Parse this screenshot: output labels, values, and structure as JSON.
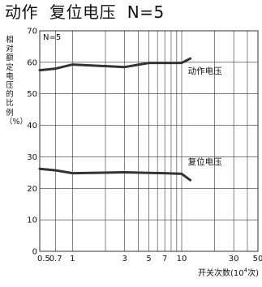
{
  "title": {
    "main": "动作",
    "sub": "复位电压",
    "n": "N=5"
  },
  "y_axis_label": "相对额定电压的比例（%）",
  "x_axis_label": {
    "before": "开关次数(10",
    "exponent": "4",
    "after": "次)"
  },
  "inset_label": "N=5",
  "chart_data": {
    "type": "line",
    "title": "动作 复位电压 N=5",
    "xlabel": "开关次数(10⁴次)",
    "ylabel": "相对额定电压的比例（%）",
    "x_scale": "log",
    "xlim": [
      0.5,
      50
    ],
    "ylim": [
      0,
      70
    ],
    "x_ticks": [
      0.5,
      0.7,
      1,
      3,
      5,
      7,
      10,
      30,
      50
    ],
    "x_tick_labels": [
      "0.5",
      "0.7",
      "1",
      "3",
      "5",
      "7",
      "10",
      "30",
      "50"
    ],
    "x_minor_gridlines": [
      2,
      4,
      6,
      8,
      9,
      20,
      40
    ],
    "y_ticks": [
      0,
      10,
      20,
      30,
      40,
      50,
      60,
      70
    ],
    "y_tick_labels": [
      "0",
      "10",
      "20",
      "30",
      "40",
      "50",
      "60",
      "70"
    ],
    "grid": true,
    "series": [
      {
        "name": "动作电压",
        "x": [
          0.5,
          0.7,
          1,
          3,
          5,
          7,
          10,
          12
        ],
        "y": [
          57.5,
          58,
          59.3,
          58.5,
          59.8,
          59.8,
          59.8,
          61.2
        ]
      },
      {
        "name": "复位电压",
        "x": [
          0.5,
          0.7,
          1,
          3,
          5,
          7,
          10,
          12
        ],
        "y": [
          26.2,
          25.7,
          24.8,
          25.1,
          24.9,
          24.8,
          24.6,
          22.6
        ]
      }
    ]
  },
  "colors": {
    "line": "#333333",
    "grid": "#333333",
    "text": "#111111"
  }
}
